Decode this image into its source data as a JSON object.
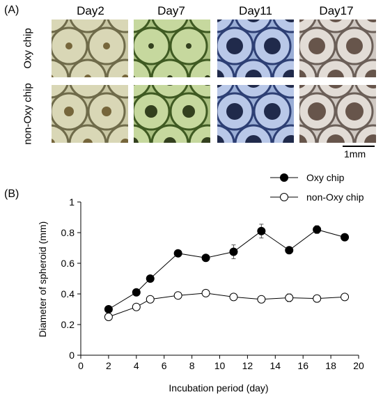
{
  "panel_a": {
    "label": "(A)",
    "days": [
      "Day2",
      "Day7",
      "Day11",
      "Day17"
    ],
    "rows": [
      "Oxy chip",
      "non-Oxy chip"
    ],
    "scale_bar": "1mm",
    "tints": [
      {
        "bg": "#c9c7a4",
        "rim": "#6f6b4a",
        "well": "#d9d7b6",
        "core": "#6a5a2e"
      },
      {
        "bg": "#aac081",
        "rim": "#3f5a22",
        "well": "#c6d89e",
        "core": "#22300f"
      },
      {
        "bg": "#9aaed6",
        "rim": "#2d3f74",
        "well": "#b9c8e8",
        "core": "#10183a"
      },
      {
        "bg": "#cfc8c2",
        "rim": "#6b5f58",
        "well": "#e2dcd6",
        "core": "#5a463c"
      }
    ]
  },
  "panel_b": {
    "label": "(B)"
  },
  "chart_data": {
    "type": "line",
    "xlabel": "Incubation period (day)",
    "ylabel": "Diameter of spheroid (mm)",
    "xlim": [
      0,
      20
    ],
    "ylim": [
      0,
      1
    ],
    "x_ticks": [
      0,
      2,
      4,
      6,
      8,
      10,
      12,
      14,
      16,
      18,
      20
    ],
    "y_ticks": [
      0,
      0.2,
      0.4,
      0.6,
      0.8,
      1
    ],
    "y_tick_labels": [
      "0",
      "0.2",
      "0.4",
      "0.6",
      "0.8",
      "1"
    ],
    "grid": false,
    "legend": "top-right",
    "series": [
      {
        "name": "Oxy chip",
        "marker": "filled",
        "x": [
          2,
          4,
          5,
          7,
          9,
          11,
          13,
          15,
          17,
          19
        ],
        "y": [
          0.3,
          0.41,
          0.5,
          0.665,
          0.635,
          0.675,
          0.81,
          0.685,
          0.82,
          0.77
        ],
        "err": [
          0.01,
          0.01,
          0.01,
          0.01,
          0.01,
          0.045,
          0.045,
          0.01,
          0.025,
          0.01
        ]
      },
      {
        "name": "non-Oxy chip",
        "marker": "open",
        "x": [
          2,
          4,
          5,
          7,
          9,
          11,
          13,
          15,
          17,
          19
        ],
        "y": [
          0.25,
          0.315,
          0.365,
          0.39,
          0.405,
          0.38,
          0.365,
          0.375,
          0.37,
          0.38
        ],
        "err": [
          0.01,
          0.01,
          0.01,
          0.01,
          0.015,
          0.01,
          0.02,
          0.025,
          0.01,
          0.01
        ]
      }
    ]
  }
}
